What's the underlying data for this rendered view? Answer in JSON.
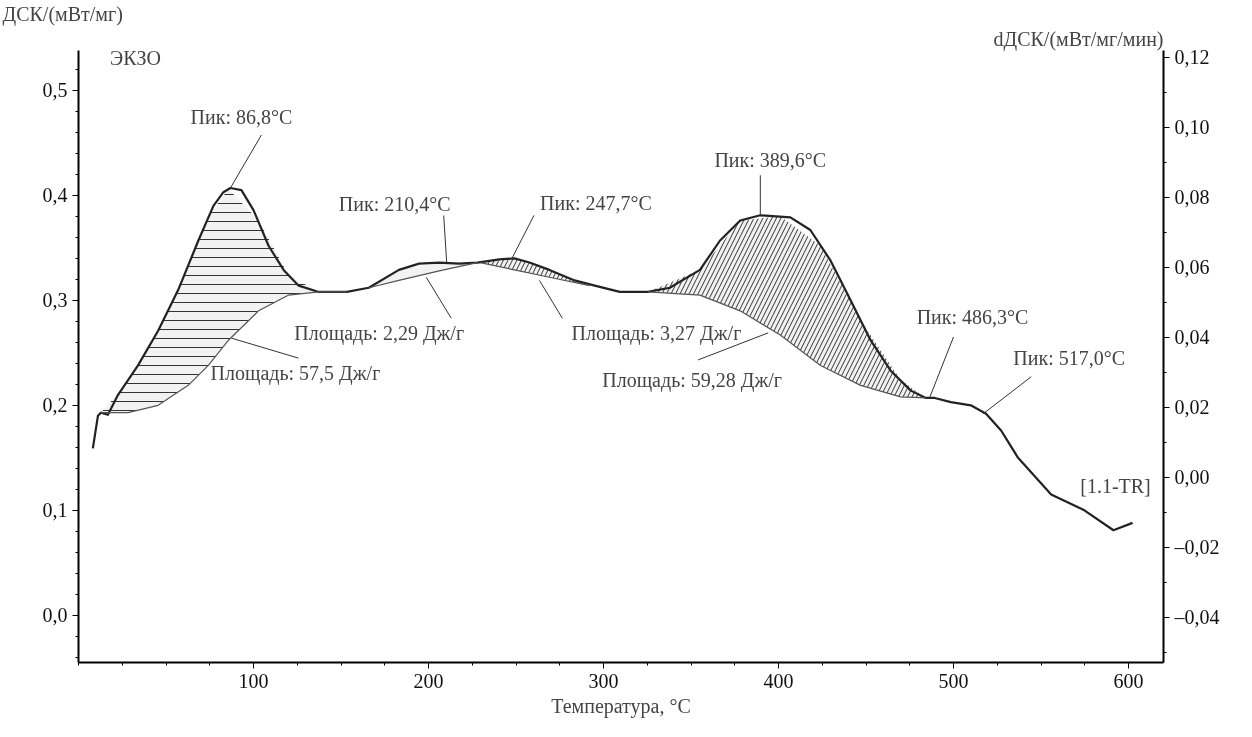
{
  "chart_data": {
    "type": "line",
    "xlabel": "Температура, °C",
    "ylabel": "ДСК/(мВт/мг)",
    "y2label": "dДСК/(мВт/мг/мин)",
    "xlim": [
      0,
      620
    ],
    "xticks": [
      100,
      200,
      300,
      400,
      500,
      600
    ],
    "ylim": [
      -0.045,
      0.538
    ],
    "yticks": [
      {
        "value": 0.0,
        "label": "0,0"
      },
      {
        "value": 0.1,
        "label": "0,1"
      },
      {
        "value": 0.2,
        "label": "0,2"
      },
      {
        "value": 0.3,
        "label": "0,3"
      },
      {
        "value": 0.4,
        "label": "0,4"
      },
      {
        "value": 0.5,
        "label": "0,5"
      }
    ],
    "y2lim": [
      -0.053,
      0.122
    ],
    "y2ticks": [
      {
        "value": -0.04,
        "label": "–0,04"
      },
      {
        "value": -0.02,
        "label": "–0,02"
      },
      {
        "value": 0.0,
        "label": "0,00"
      },
      {
        "value": 0.02,
        "label": "0,02"
      },
      {
        "value": 0.04,
        "label": "0,04"
      },
      {
        "value": 0.06,
        "label": "0,06"
      },
      {
        "value": 0.08,
        "label": "0,08"
      },
      {
        "value": 0.1,
        "label": "0,10"
      },
      {
        "value": 0.12,
        "label": "0,12"
      }
    ],
    "grid": false,
    "series": [
      {
        "color": "#222222",
        "x": [
          8.2,
          11.1,
          12.8,
          16.8,
          22.6,
          34.0,
          45.5,
          57.0,
          68.5,
          77.1,
          82.8,
          86.8,
          93.1,
          100.0,
          108.6,
          117.2,
          125.8,
          137.3,
          153.3,
          165.9,
          183.1,
          194.6,
          206.1,
          217.5,
          227.9,
          240.5,
          249.1,
          257.7,
          269.1,
          283.5,
          295.0,
          309.3,
          325.3,
          337.9,
          355.1,
          366.6,
          378.1,
          389.6,
          406.8,
          418.2,
          429.7,
          441.2,
          452.6,
          464.1,
          475.6,
          484.2,
          489.3,
          498.5,
          509.9,
          518.6,
          527.2,
          536.9,
          555.8,
          574.8,
          591.4,
          602.3
        ],
        "values": [
          0.159,
          0.19,
          0.193,
          0.191,
          0.21,
          0.238,
          0.271,
          0.31,
          0.357,
          0.39,
          0.403,
          0.407,
          0.405,
          0.386,
          0.352,
          0.329,
          0.314,
          0.308,
          0.308,
          0.312,
          0.329,
          0.335,
          0.336,
          0.335,
          0.336,
          0.339,
          0.34,
          0.336,
          0.329,
          0.319,
          0.314,
          0.308,
          0.308,
          0.312,
          0.329,
          0.357,
          0.376,
          0.381,
          0.379,
          0.367,
          0.338,
          0.3,
          0.262,
          0.233,
          0.214,
          0.207,
          0.207,
          0.203,
          0.2,
          0.192,
          0.176,
          0.15,
          0.115,
          0.1,
          0.081,
          0.088
        ]
      },
      {
        "color": "#555555",
        "x": [
          12.8,
          28.3,
          45.5,
          62.7,
          74.2,
          85.7,
          102.9,
          120.1,
          137.3,
          153.3
        ],
        "values": [
          0.193,
          0.193,
          0.2,
          0.219,
          0.238,
          0.262,
          0.29,
          0.305,
          0.308,
          0.308
        ],
        "lower": [
          0.193,
          0.193,
          0.2,
          0.219,
          0.238,
          0.262,
          0.29,
          0.305,
          0.308,
          0.308
        ],
        "upper": [
          0.193,
          0.222,
          0.271,
          0.333,
          0.38,
          0.406,
          0.376,
          0.324,
          0.308,
          0.308
        ]
      },
      {
        "color": "#555555",
        "x": [
          165.9,
          183.1,
          206.1,
          227.9
        ],
        "values": [
          0.312,
          0.319,
          0.328,
          0.336
        ],
        "lower": [
          0.312,
          0.319,
          0.328,
          0.336
        ],
        "upper": [
          0.312,
          0.329,
          0.336,
          0.336
        ]
      },
      {
        "color": "#555555",
        "x": [
          229.6,
          249.1,
          269.1,
          292.1
        ],
        "values": [
          0.336,
          0.329,
          0.322,
          0.314
        ],
        "lower": [
          0.336,
          0.329,
          0.322,
          0.314
        ],
        "upper": [
          0.336,
          0.34,
          0.329,
          0.314
        ]
      },
      {
        "color": "#555555",
        "x": [
          325.3,
          355.1,
          378.1,
          401.0,
          424.0,
          446.9,
          469.8,
          484.2
        ],
        "values": [
          0.308,
          0.305,
          0.29,
          0.267,
          0.238,
          0.219,
          0.208,
          0.207
        ],
        "lower": [
          0.308,
          0.305,
          0.29,
          0.267,
          0.238,
          0.219,
          0.208,
          0.207
        ],
        "upper": [
          0.308,
          0.329,
          0.376,
          0.38,
          0.352,
          0.281,
          0.224,
          0.207
        ]
      }
    ],
    "annotations": [
      "ЭКЗО",
      {
        "text": "Пик: 86,8°C",
        "x": 86.8,
        "y": 0.407
      },
      {
        "text": "Пик: 210,4°C",
        "x": 210.4,
        "y": 0.336
      },
      {
        "text": "Пик: 247,7°C",
        "x": 247.7,
        "y": 0.34
      },
      {
        "text": "Пик: 389,6°C",
        "x": 389.6,
        "y": 0.381
      },
      {
        "text": "Пик: 486,3°C",
        "x": 486.3,
        "y": 0.207
      },
      {
        "text": "Пик: 517,0°C",
        "x": 517.0,
        "y": 0.192
      },
      {
        "text": "Площадь: 57,5 Дж/г",
        "x": 87.4,
        "y": 0.264
      },
      {
        "text": "Площадь: 2,29 Дж/г",
        "x": 198.7,
        "y": 0.322
      },
      {
        "text": "Площадь: 3,27 Дж/г",
        "x": 263.4,
        "y": 0.319
      },
      {
        "text": "Площадь: 59,28 Дж/г",
        "x": 394.1,
        "y": 0.269
      },
      "[1.1-TR]"
    ]
  }
}
